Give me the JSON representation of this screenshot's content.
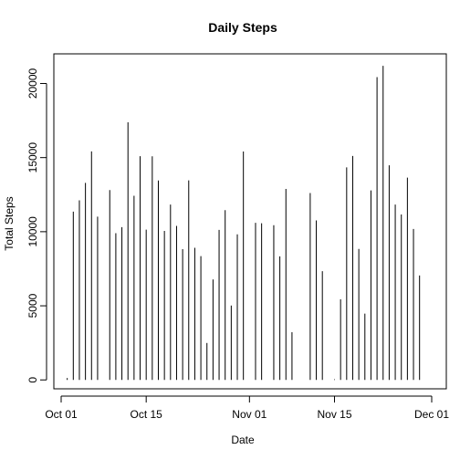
{
  "chart_data": {
    "type": "bar",
    "title": "Daily Steps",
    "xlabel": "Date",
    "ylabel": "Total Steps",
    "x_ticks": [
      "Oct 01",
      "Oct 15",
      "Nov 01",
      "Nov 15",
      "Dec 01"
    ],
    "y_ticks": [
      "0",
      "5000",
      "10000",
      "15000",
      "20000"
    ],
    "x_range": [
      "2012-10-01",
      "2012-12-01"
    ],
    "ylim": [
      -600,
      22000
    ],
    "grid": false,
    "colors": {
      "bars": "#000000",
      "axes": "#000000"
    },
    "dates": [
      "2012-10-02",
      "2012-10-03",
      "2012-10-04",
      "2012-10-05",
      "2012-10-06",
      "2012-10-07",
      "2012-10-09",
      "2012-10-10",
      "2012-10-11",
      "2012-10-12",
      "2012-10-13",
      "2012-10-14",
      "2012-10-15",
      "2012-10-16",
      "2012-10-17",
      "2012-10-18",
      "2012-10-19",
      "2012-10-20",
      "2012-10-21",
      "2012-10-22",
      "2012-10-23",
      "2012-10-24",
      "2012-10-25",
      "2012-10-26",
      "2012-10-27",
      "2012-10-28",
      "2012-10-29",
      "2012-10-30",
      "2012-10-31",
      "2012-11-02",
      "2012-11-03",
      "2012-11-05",
      "2012-11-06",
      "2012-11-07",
      "2012-11-08",
      "2012-11-11",
      "2012-11-12",
      "2012-11-13",
      "2012-11-15",
      "2012-11-16",
      "2012-11-17",
      "2012-11-18",
      "2012-11-19",
      "2012-11-20",
      "2012-11-21",
      "2012-11-22",
      "2012-11-23",
      "2012-11-24",
      "2012-11-25",
      "2012-11-26",
      "2012-11-27",
      "2012-11-28",
      "2012-11-29"
    ],
    "values": [
      126,
      11352,
      12116,
      13294,
      15420,
      11015,
      12811,
      9900,
      10304,
      17382,
      12426,
      15098,
      10139,
      15084,
      13452,
      10056,
      11829,
      10395,
      8821,
      13460,
      8918,
      8355,
      2492,
      6778,
      10119,
      11458,
      5018,
      9819,
      15414,
      10600,
      10571,
      10439,
      8334,
      12883,
      3219,
      12608,
      10765,
      7336,
      41,
      5441,
      14339,
      15110,
      8841,
      4472,
      12787,
      20427,
      21194,
      14478,
      11834,
      11162,
      13646,
      10183,
      7047
    ]
  }
}
